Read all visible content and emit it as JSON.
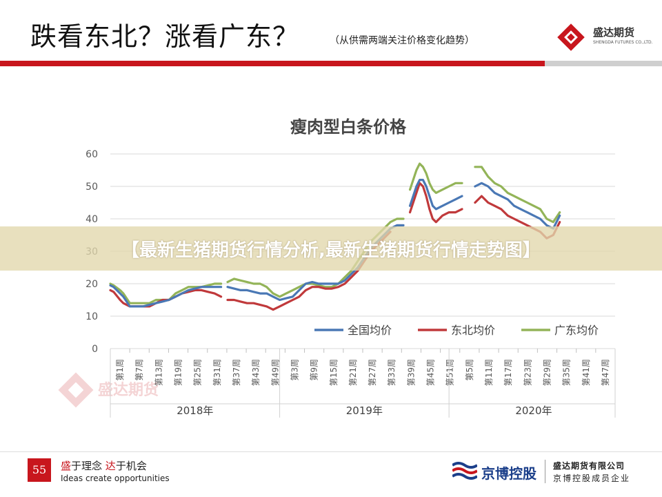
{
  "header": {
    "title": "跌看东北？涨看广东？",
    "subtitle": "（从供需两端关注价格变化趋势）",
    "logo_name": "盛达期货",
    "logo_sub": "SHENGDA FUTURES CO.,LTD."
  },
  "banner": {
    "text": "【最新生猪期货行情分析,最新生猪期货行情走势图】"
  },
  "footer": {
    "page_number": "55",
    "slogan_prefix1": "盛",
    "slogan_rest1": "于理念 ",
    "slogan_prefix2": "达",
    "slogan_rest2": "于机会",
    "slogan_en": "Ideas create opportunities",
    "partner_name": "京博控股",
    "company_name": "盛达期货有限公司",
    "company_sub": "京博控股成员企业"
  },
  "watermark": {
    "text": "盛达期货"
  },
  "colors": {
    "national": "#4a78b5",
    "northeast": "#c0393b",
    "guangdong": "#93b458",
    "brand_red": "#c8161d"
  },
  "chart_data": {
    "type": "line",
    "title": "瘦肉型白条价格",
    "ylim": [
      0,
      60
    ],
    "yticks": [
      0,
      10,
      20,
      30,
      40,
      50,
      60
    ],
    "legend_position": "bottom-inside",
    "grid": true,
    "x_week_labels": [
      "第1周",
      "第7周",
      "第13周",
      "第19周",
      "第25周",
      "第31周",
      "第37周",
      "第43周",
      "第49周",
      "第3周",
      "第9周",
      "第15周",
      "第21周",
      "第27周",
      "第33周",
      "第39周",
      "第45周",
      "第51周",
      "第5周",
      "第11周",
      "第17周",
      "第23周",
      "第29周",
      "第35周",
      "第41周",
      "第47周"
    ],
    "x_groups": [
      {
        "label": "2018年",
        "start": 0,
        "end": 51
      },
      {
        "label": "2019年",
        "start": 52,
        "end": 103
      },
      {
        "label": "2020年",
        "start": 104,
        "end": 155
      }
    ],
    "series": [
      {
        "name": "全国均价",
        "points": [
          [
            0,
            19.5
          ],
          [
            1,
            19
          ],
          [
            3,
            17
          ],
          [
            4,
            16
          ],
          [
            6,
            13
          ],
          [
            8,
            13
          ],
          [
            10,
            13
          ],
          [
            12,
            13.5
          ],
          [
            14,
            14
          ],
          [
            16,
            14.5
          ],
          [
            18,
            15
          ],
          [
            20,
            16
          ],
          [
            22,
            17
          ],
          [
            24,
            18
          ],
          [
            26,
            18.5
          ],
          [
            28,
            19
          ],
          [
            30,
            19
          ],
          [
            32,
            19
          ],
          [
            34,
            19
          ],
          [
            null,
            null
          ],
          [
            36,
            19
          ],
          [
            38,
            18.5
          ],
          [
            40,
            18
          ],
          [
            42,
            18
          ],
          [
            44,
            17.5
          ],
          [
            46,
            17
          ],
          [
            48,
            17
          ],
          [
            50,
            16
          ],
          [
            52,
            15
          ],
          [
            54,
            15.5
          ],
          [
            56,
            16
          ],
          [
            58,
            18
          ],
          [
            60,
            20
          ],
          [
            62,
            20.5
          ],
          [
            64,
            20
          ],
          [
            66,
            20
          ],
          [
            68,
            20
          ],
          [
            70,
            20
          ],
          [
            72,
            21
          ],
          [
            74,
            23
          ],
          [
            76,
            25
          ],
          [
            78,
            28
          ],
          [
            80,
            31
          ],
          [
            82,
            33
          ],
          [
            84,
            35
          ],
          [
            86,
            37
          ],
          [
            88,
            38
          ],
          [
            90,
            38
          ],
          [
            null,
            null
          ],
          [
            92,
            44
          ],
          [
            93,
            47
          ],
          [
            94,
            50
          ],
          [
            95,
            52
          ],
          [
            96,
            52
          ],
          [
            97,
            50
          ],
          [
            98,
            47
          ],
          [
            99,
            44
          ],
          [
            100,
            43
          ],
          [
            102,
            44
          ],
          [
            104,
            45
          ],
          [
            106,
            46
          ],
          [
            108,
            47
          ],
          [
            null,
            null
          ],
          [
            112,
            50
          ],
          [
            114,
            51
          ],
          [
            116,
            50
          ],
          [
            118,
            48
          ],
          [
            120,
            47
          ],
          [
            122,
            46
          ],
          [
            124,
            44
          ],
          [
            126,
            43
          ],
          [
            128,
            42
          ],
          [
            130,
            41
          ],
          [
            132,
            40
          ],
          [
            134,
            38
          ],
          [
            136,
            37
          ],
          [
            138,
            41
          ]
        ]
      },
      {
        "name": "东北均价",
        "points": [
          [
            0,
            18
          ],
          [
            1,
            17.5
          ],
          [
            3,
            15
          ],
          [
            4,
            14
          ],
          [
            6,
            13
          ],
          [
            8,
            13
          ],
          [
            10,
            13
          ],
          [
            12,
            13
          ],
          [
            14,
            14
          ],
          [
            16,
            15
          ],
          [
            18,
            15
          ],
          [
            20,
            16
          ],
          [
            22,
            17
          ],
          [
            24,
            17.5
          ],
          [
            26,
            18
          ],
          [
            28,
            18
          ],
          [
            30,
            17.5
          ],
          [
            32,
            17
          ],
          [
            34,
            16
          ],
          [
            null,
            null
          ],
          [
            36,
            15
          ],
          [
            38,
            15
          ],
          [
            40,
            14.5
          ],
          [
            42,
            14
          ],
          [
            44,
            14
          ],
          [
            46,
            13.5
          ],
          [
            48,
            13
          ],
          [
            50,
            12
          ],
          [
            52,
            13
          ],
          [
            54,
            14
          ],
          [
            56,
            15
          ],
          [
            58,
            16
          ],
          [
            60,
            18
          ],
          [
            62,
            19
          ],
          [
            64,
            19
          ],
          [
            66,
            18.5
          ],
          [
            68,
            18.5
          ],
          [
            70,
            19
          ],
          [
            72,
            20
          ],
          [
            74,
            22
          ],
          [
            76,
            24
          ],
          [
            78,
            27
          ],
          [
            80,
            30
          ],
          [
            82,
            32
          ],
          [
            84,
            34
          ],
          [
            86,
            36
          ],
          [
            null,
            null
          ],
          [
            92,
            42
          ],
          [
            93,
            45
          ],
          [
            94,
            48
          ],
          [
            95,
            51
          ],
          [
            96,
            50
          ],
          [
            97,
            47
          ],
          [
            98,
            43
          ],
          [
            99,
            40
          ],
          [
            100,
            39
          ],
          [
            102,
            41
          ],
          [
            104,
            42
          ],
          [
            106,
            42
          ],
          [
            108,
            43
          ],
          [
            null,
            null
          ],
          [
            112,
            45
          ],
          [
            114,
            47
          ],
          [
            116,
            45
          ],
          [
            118,
            44
          ],
          [
            120,
            43
          ],
          [
            122,
            41
          ],
          [
            124,
            40
          ],
          [
            126,
            39
          ],
          [
            128,
            38
          ],
          [
            130,
            37
          ],
          [
            132,
            36
          ],
          [
            134,
            34
          ],
          [
            136,
            35
          ],
          [
            138,
            39
          ]
        ]
      },
      {
        "name": "广东均价",
        "points": [
          [
            0,
            20
          ],
          [
            1,
            19.5
          ],
          [
            3,
            18
          ],
          [
            4,
            17
          ],
          [
            6,
            14
          ],
          [
            8,
            14
          ],
          [
            10,
            14
          ],
          [
            12,
            14
          ],
          [
            14,
            15
          ],
          [
            16,
            15
          ],
          [
            18,
            15
          ],
          [
            20,
            17
          ],
          [
            22,
            18
          ],
          [
            24,
            19
          ],
          [
            26,
            19
          ],
          [
            28,
            19
          ],
          [
            30,
            19.5
          ],
          [
            32,
            20
          ],
          [
            34,
            20
          ],
          [
            null,
            null
          ],
          [
            36,
            20.5
          ],
          [
            38,
            21.5
          ],
          [
            40,
            21
          ],
          [
            42,
            20.5
          ],
          [
            44,
            20
          ],
          [
            46,
            20
          ],
          [
            48,
            19
          ],
          [
            50,
            17
          ],
          [
            52,
            16
          ],
          [
            54,
            17
          ],
          [
            56,
            18
          ],
          [
            58,
            19
          ],
          [
            60,
            20
          ],
          [
            62,
            20
          ],
          [
            64,
            19.5
          ],
          [
            66,
            19
          ],
          [
            68,
            19
          ],
          [
            70,
            20
          ],
          [
            72,
            22
          ],
          [
            74,
            24
          ],
          [
            76,
            27
          ],
          [
            78,
            30
          ],
          [
            80,
            33
          ],
          [
            82,
            35
          ],
          [
            84,
            37
          ],
          [
            86,
            39
          ],
          [
            88,
            40
          ],
          [
            90,
            40
          ],
          [
            null,
            null
          ],
          [
            92,
            49
          ],
          [
            93,
            52
          ],
          [
            94,
            55
          ],
          [
            95,
            57
          ],
          [
            96,
            56
          ],
          [
            97,
            54
          ],
          [
            98,
            51
          ],
          [
            99,
            49
          ],
          [
            100,
            48
          ],
          [
            102,
            49
          ],
          [
            104,
            50
          ],
          [
            106,
            51
          ],
          [
            108,
            51
          ],
          [
            null,
            null
          ],
          [
            112,
            56
          ],
          [
            114,
            56
          ],
          [
            116,
            53
          ],
          [
            118,
            51
          ],
          [
            120,
            50
          ],
          [
            122,
            48
          ],
          [
            124,
            47
          ],
          [
            126,
            46
          ],
          [
            128,
            45
          ],
          [
            130,
            44
          ],
          [
            132,
            43
          ],
          [
            134,
            40
          ],
          [
            136,
            39
          ],
          [
            138,
            42
          ]
        ]
      }
    ]
  }
}
